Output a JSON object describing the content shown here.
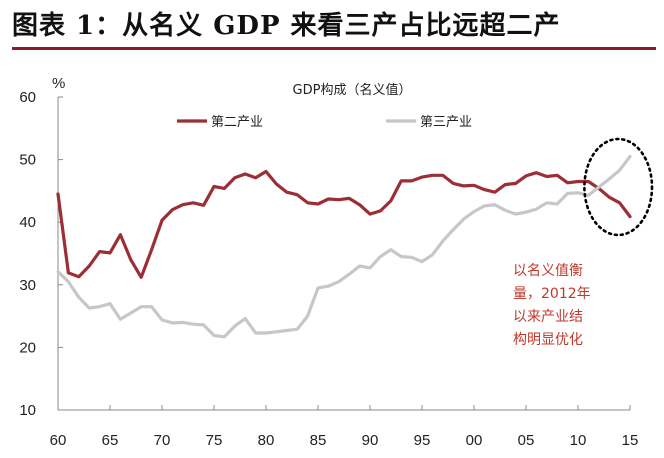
{
  "figure": {
    "title": "图表 1：从名义 GDP 来看三产占比远超二产"
  },
  "chart_data": {
    "type": "line",
    "title": "GDP构成（名义值）",
    "ylabel": "%",
    "xlabel": "",
    "ylim": [
      10,
      60
    ],
    "yticks": [
      10,
      20,
      30,
      40,
      50,
      60
    ],
    "xlim": [
      1960,
      2015
    ],
    "xticks": [
      1960,
      1965,
      1970,
      1975,
      1980,
      1985,
      1990,
      1995,
      2000,
      2005,
      2010,
      2015
    ],
    "xtick_labels": [
      "60",
      "65",
      "70",
      "75",
      "80",
      "85",
      "90",
      "95",
      "00",
      "05",
      "10",
      "15"
    ],
    "grid": false,
    "legend_position": "top",
    "series": [
      {
        "name": "第二产业",
        "color": "#9b2f35",
        "x": [
          1960,
          1961,
          1962,
          1963,
          1964,
          1965,
          1966,
          1967,
          1968,
          1969,
          1970,
          1971,
          1972,
          1973,
          1974,
          1975,
          1976,
          1977,
          1978,
          1979,
          1980,
          1981,
          1982,
          1983,
          1984,
          1985,
          1986,
          1987,
          1988,
          1989,
          1990,
          1991,
          1992,
          1993,
          1994,
          1995,
          1996,
          1997,
          1998,
          1999,
          2000,
          2001,
          2002,
          2003,
          2004,
          2005,
          2006,
          2007,
          2008,
          2009,
          2010,
          2011,
          2012,
          2013,
          2014,
          2015
        ],
        "values": [
          44.5,
          31.9,
          31.3,
          33.0,
          35.3,
          35.1,
          38.0,
          34.0,
          31.2,
          35.6,
          40.3,
          42.0,
          42.8,
          43.1,
          42.7,
          45.7,
          45.4,
          47.1,
          47.7,
          47.1,
          48.1,
          46.1,
          44.8,
          44.4,
          43.1,
          42.9,
          43.7,
          43.6,
          43.8,
          42.8,
          41.3,
          41.8,
          43.4,
          46.6,
          46.6,
          47.2,
          47.5,
          47.5,
          46.2,
          45.8,
          45.9,
          45.2,
          44.8,
          46.0,
          46.2,
          47.4,
          47.9,
          47.3,
          47.5,
          46.3,
          46.5,
          46.5,
          45.4,
          44.0,
          43.1,
          40.9
        ]
      },
      {
        "name": "第三产业",
        "color": "#c7c7c7",
        "x": [
          1960,
          1961,
          1962,
          1963,
          1964,
          1965,
          1966,
          1967,
          1968,
          1969,
          1970,
          1971,
          1972,
          1973,
          1974,
          1975,
          1976,
          1977,
          1978,
          1979,
          1980,
          1981,
          1982,
          1983,
          1984,
          1985,
          1986,
          1987,
          1988,
          1989,
          1990,
          1991,
          1992,
          1993,
          1994,
          1995,
          1996,
          1997,
          1998,
          1999,
          2000,
          2001,
          2002,
          2003,
          2004,
          2005,
          2006,
          2007,
          2008,
          2009,
          2010,
          2011,
          2012,
          2013,
          2014,
          2015
        ],
        "values": [
          32.1,
          30.5,
          28.0,
          26.3,
          26.5,
          27.0,
          24.5,
          25.5,
          26.5,
          26.5,
          24.4,
          23.9,
          24.0,
          23.7,
          23.6,
          21.9,
          21.7,
          23.4,
          24.6,
          22.3,
          22.3,
          22.5,
          22.7,
          22.9,
          25.0,
          29.5,
          29.8,
          30.5,
          31.7,
          33.0,
          32.7,
          34.5,
          35.6,
          34.5,
          34.4,
          33.7,
          34.8,
          37.0,
          38.8,
          40.5,
          41.7,
          42.6,
          42.8,
          41.9,
          41.3,
          41.6,
          42.1,
          43.1,
          42.9,
          44.6,
          44.7,
          44.3,
          45.6,
          46.9,
          48.3,
          50.5
        ]
      }
    ],
    "annotations": [
      {
        "lines": [
          "以名义值衡",
          "量，2012年",
          "以来产业结",
          "构明显优化"
        ],
        "color": "#c0392b"
      }
    ],
    "highlight": {
      "shape": "dotted-ellipse",
      "color": "#000000",
      "x_range": [
        2011,
        2015
      ]
    }
  }
}
